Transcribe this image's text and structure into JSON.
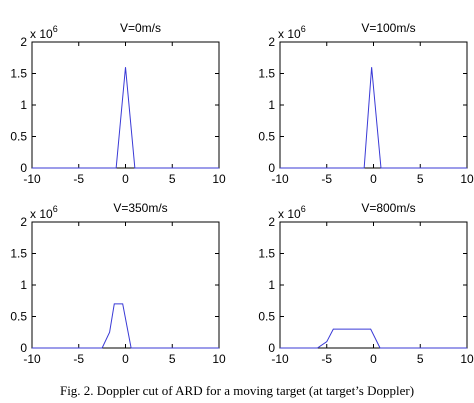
{
  "chart_data": [
    {
      "type": "line",
      "title": "V=0m/s",
      "y_offset_label": {
        "base": "x 10",
        "exponent": "6"
      },
      "x": [
        -10,
        -1,
        0,
        1,
        10
      ],
      "series": [
        {
          "color": "#3a3ad6",
          "values": [
            0,
            0,
            1.6,
            0,
            0
          ]
        }
      ],
      "xlim": [
        -10,
        10
      ],
      "ylim": [
        0,
        2
      ],
      "xticks": [
        -10,
        -5,
        0,
        5,
        10
      ],
      "yticks": [
        0,
        0.5,
        1,
        1.5,
        2
      ],
      "grid": false
    },
    {
      "type": "line",
      "title": "V=100m/s",
      "y_offset_label": {
        "base": "x 10",
        "exponent": "6"
      },
      "x": [
        -10,
        -1,
        -0.2,
        0.8,
        10
      ],
      "series": [
        {
          "color": "#3a3ad6",
          "values": [
            0,
            0,
            1.6,
            0,
            0
          ]
        }
      ],
      "xlim": [
        -10,
        10
      ],
      "ylim": [
        0,
        2
      ],
      "xticks": [
        -10,
        -5,
        0,
        5,
        10
      ],
      "yticks": [
        0,
        0.5,
        1,
        1.5,
        2
      ],
      "grid": false
    },
    {
      "type": "line",
      "title": "V=350m/s",
      "y_offset_label": {
        "base": "x 10",
        "exponent": "6"
      },
      "x": [
        -10,
        -2.5,
        -1.7,
        -1.2,
        -0.3,
        0.6,
        10
      ],
      "series": [
        {
          "color": "#3a3ad6",
          "values": [
            0,
            0,
            0.25,
            0.7,
            0.7,
            0,
            0
          ]
        }
      ],
      "xlim": [
        -10,
        10
      ],
      "ylim": [
        0,
        2
      ],
      "xticks": [
        -10,
        -5,
        0,
        5,
        10
      ],
      "yticks": [
        0,
        0.5,
        1,
        1.5,
        2
      ],
      "grid": false
    },
    {
      "type": "line",
      "title": "V=800m/s",
      "y_offset_label": {
        "base": "x 10",
        "exponent": "6"
      },
      "x": [
        -10,
        -6,
        -5,
        -4.3,
        -0.3,
        0.7,
        10
      ],
      "series": [
        {
          "color": "#3a3ad6",
          "values": [
            0,
            0,
            0.1,
            0.3,
            0.3,
            0,
            0
          ]
        }
      ],
      "xlim": [
        -10,
        10
      ],
      "ylim": [
        0,
        2
      ],
      "xticks": [
        -10,
        -5,
        0,
        5,
        10
      ],
      "yticks": [
        0,
        0.5,
        1,
        1.5,
        2
      ],
      "grid": false
    }
  ],
  "caption": "Fig. 2.  Doppler cut of ARD for a moving target (at target’s Doppler)"
}
